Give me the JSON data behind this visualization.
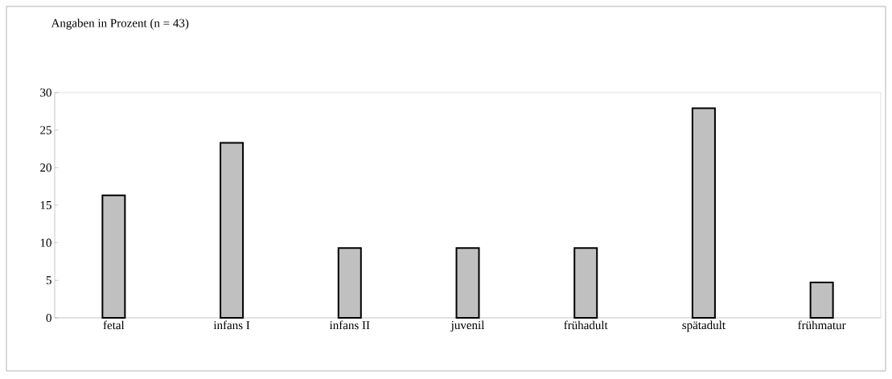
{
  "chart_data": {
    "type": "bar",
    "title": "Angaben in Prozent (n = 43)",
    "categories": [
      "fetal",
      "infans I",
      "infans II",
      "juvenil",
      "frühadult",
      "spätadult",
      "frühmatur"
    ],
    "values": [
      16.3,
      23.3,
      9.3,
      9.3,
      9.3,
      27.9,
      4.7
    ],
    "color": "#c0c0c0",
    "ylim": [
      0,
      30
    ],
    "yticks": [
      0,
      5,
      10,
      15,
      20,
      25,
      30
    ],
    "grid": false,
    "legend": false
  }
}
